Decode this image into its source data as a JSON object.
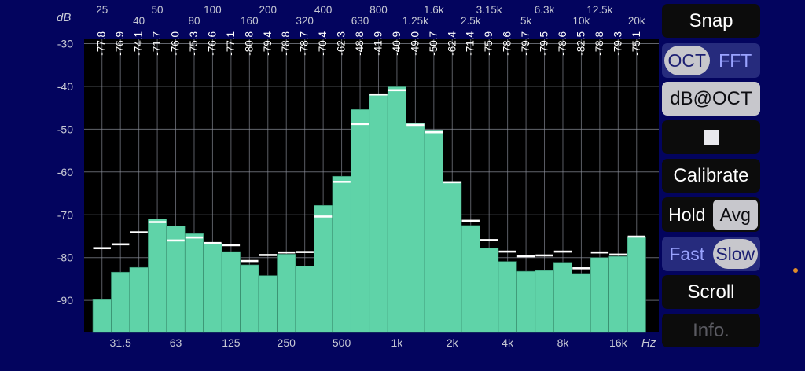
{
  "colors": {
    "background": "#03045e",
    "plot_bg": "#000000",
    "bar": "#5fd3a8",
    "peak": "#ffffff",
    "grid": "#8b8f9a",
    "axis_text": "#c6c8d4",
    "accent_dot": "#e08c2a"
  },
  "controls": {
    "snap": "Snap",
    "oct": "OCT",
    "fft": "FFT",
    "db_oct": "dB@OCT",
    "stop_icon": "square-stop-icon",
    "calibrate": "Calibrate",
    "hold": "Hold",
    "avg": "Avg",
    "fast": "Fast",
    "slow": "Slow",
    "scroll": "Scroll",
    "info": "Info."
  },
  "chart_data": {
    "type": "bar",
    "title": "",
    "xlabel": "Hz",
    "ylabel": "dB",
    "ylim": [
      -97.5,
      -29
    ],
    "y_ticks": [
      -30,
      -40,
      -50,
      -60,
      -70,
      -80,
      -90
    ],
    "grid": true,
    "top_freq_labels_row1": [
      "25",
      "50",
      "100",
      "200",
      "400",
      "800",
      "1.6k",
      "3.15k",
      "6.3k",
      "12.5k"
    ],
    "top_freq_labels_row2": [
      "40",
      "80",
      "160",
      "320",
      "630",
      "1.25k",
      "2.5k",
      "5k",
      "10k",
      "20k"
    ],
    "bottom_freq_labels": [
      "31.5",
      "63",
      "125",
      "250",
      "500",
      "1k",
      "2k",
      "4k",
      "8k",
      "16k"
    ],
    "categories": [
      "25",
      "31.5",
      "40",
      "50",
      "63",
      "80",
      "100",
      "125",
      "160",
      "200",
      "250",
      "315",
      "400",
      "500",
      "630",
      "800",
      "1k",
      "1.25k",
      "1.6k",
      "2k",
      "2.5k",
      "3.15k",
      "4k",
      "5k",
      "6.3k",
      "8k",
      "10k",
      "12.5k",
      "16k",
      "20k"
    ],
    "band_labels": [
      "77.8",
      "76.9",
      "74.1",
      "71.7",
      "76.0",
      "75.3",
      "76.6",
      "77.1",
      "80.8",
      "79.4",
      "78.8",
      "78.7",
      "70.4",
      "62.3",
      "48.8",
      "41.9",
      "40.9",
      "49.0",
      "50.7",
      "62.4",
      "71.4",
      "75.9",
      "78.6",
      "79.7",
      "79.5",
      "78.6",
      "82.5",
      "78.8",
      "79.3",
      "75.1"
    ],
    "series": [
      {
        "name": "",
        "values": [
          -89.8,
          -83.4,
          -82.3,
          -71.0,
          -72.6,
          -74.4,
          -76.6,
          -78.6,
          -81.7,
          -84.2,
          -79.2,
          -82.0,
          -67.8,
          -61.0,
          -45.4,
          -41.9,
          -40.1,
          -48.6,
          -50.3,
          -62.2,
          -72.5,
          -77.8,
          -80.9,
          -83.2,
          -83.0,
          -81.1,
          -83.7,
          -80.0,
          -79.7,
          -75.1
        ]
      },
      {
        "name": "",
        "values": [
          -77.8,
          -76.9,
          -74.1,
          -71.7,
          -76.0,
          -75.3,
          -76.6,
          -77.1,
          -80.8,
          -79.4,
          -78.8,
          -78.7,
          -70.4,
          -62.3,
          -48.8,
          -41.9,
          -40.9,
          -49.0,
          -50.7,
          -62.4,
          -71.4,
          -75.9,
          -78.6,
          -79.7,
          -79.5,
          -78.6,
          -82.5,
          -78.8,
          -79.3,
          -75.1
        ]
      }
    ]
  }
}
